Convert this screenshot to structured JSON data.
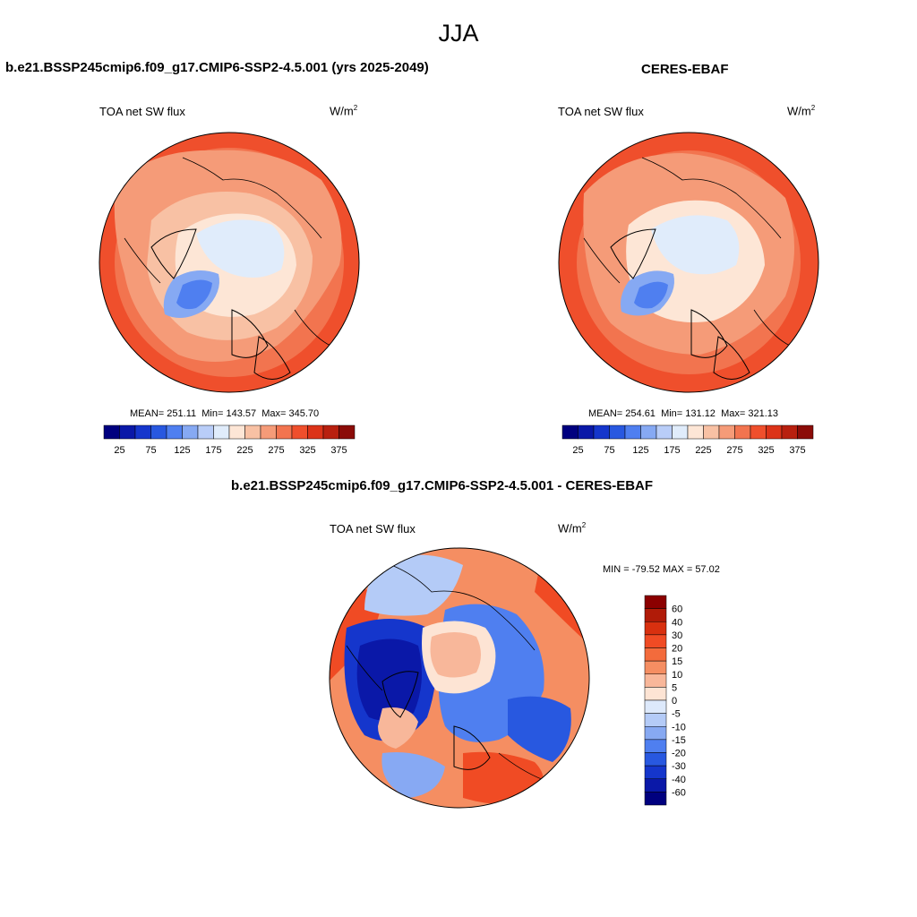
{
  "figure": {
    "season": "JJA",
    "panels": [
      {
        "id": "model",
        "title": "b.e21.BSSP245cmip6.f09_g17.CMIP6-SSP2-4.5.001 (yrs 2025-2049)",
        "variable": "TOA net SW flux",
        "units_base": "W/m",
        "units_exp": "2",
        "stats": {
          "mean_label": "MEAN=",
          "mean": "251.11",
          "min_label": "Min=",
          "min": "143.57",
          "max_label": "Max=",
          "max": "345.70"
        }
      },
      {
        "id": "obs",
        "title": "CERES-EBAF",
        "variable": "TOA net SW flux",
        "units_base": "W/m",
        "units_exp": "2",
        "stats": {
          "mean_label": "MEAN=",
          "mean": "254.61",
          "min_label": "Min=",
          "min": "131.12",
          "max_label": "Max=",
          "max": "321.13"
        }
      },
      {
        "id": "diff",
        "title": "b.e21.BSSP245cmip6.f09_g17.CMIP6-SSP2-4.5.001 - CERES-EBAF",
        "variable": "TOA net SW flux",
        "units_base": "W/m",
        "units_exp": "2",
        "minmax_text": "MIN = -79.52 MAX =  57.02"
      }
    ],
    "colorbar_abs": {
      "labels": [
        "25",
        "75",
        "125",
        "175",
        "225",
        "275",
        "325",
        "375"
      ],
      "colors": [
        "#00007f",
        "#0a18a8",
        "#1536cc",
        "#2858e0",
        "#4f7ff0",
        "#86a9f3",
        "#b9cdf8",
        "#e0ecfb",
        "#fde6d6",
        "#f8c1a4",
        "#f59b78",
        "#f2744f",
        "#ef4f2c",
        "#dc3318",
        "#b8200f",
        "#8b0c08"
      ]
    },
    "colorbar_diff": {
      "labels": [
        "60",
        "40",
        "30",
        "20",
        "15",
        "10",
        "5",
        "0",
        "-5",
        "-10",
        "-15",
        "-20",
        "-30",
        "-40",
        "-60"
      ],
      "colors": [
        "#8b0000",
        "#b01b08",
        "#d8300f",
        "#f04b24",
        "#f36b3c",
        "#f58e62",
        "#f8b79a",
        "#fde4d4",
        "#dde9fb",
        "#b4cbf7",
        "#87a9f2",
        "#4f7ff0",
        "#2858e0",
        "#1536cc",
        "#0a18a8",
        "#00007f"
      ]
    },
    "map_fields": {
      "abs_background": "#f2744f",
      "diff_background": "#f58e62"
    }
  }
}
